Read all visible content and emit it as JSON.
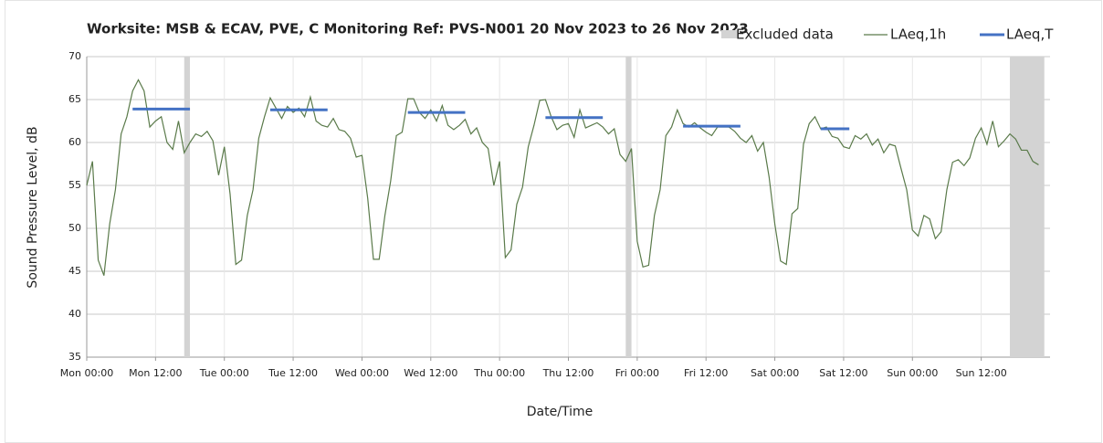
{
  "chart_data": {
    "type": "line",
    "title": "Worksite: MSB & ECAV, PVE, C   Monitoring Ref: PVS-N001     20 Nov 2023 to 26 Nov 2023",
    "x_label": "Date/Time",
    "y_label": "Sound Pressure Level, dB",
    "xlim": [
      0,
      168
    ],
    "ylim": [
      35,
      70
    ],
    "xticks": [
      {
        "value": 0,
        "label": "Mon 00:00"
      },
      {
        "value": 12,
        "label": "Mon 12:00"
      },
      {
        "value": 24,
        "label": "Tue 00:00"
      },
      {
        "value": 36,
        "label": "Tue 12:00"
      },
      {
        "value": 48,
        "label": "Wed 00:00"
      },
      {
        "value": 60,
        "label": "Wed 12:00"
      },
      {
        "value": 72,
        "label": "Thu 00:00"
      },
      {
        "value": 84,
        "label": "Thu 12:00"
      },
      {
        "value": 96,
        "label": "Fri 00:00"
      },
      {
        "value": 108,
        "label": "Fri 12:00"
      },
      {
        "value": 120,
        "label": "Sat 00:00"
      },
      {
        "value": 132,
        "label": "Sat 12:00"
      },
      {
        "value": 144,
        "label": "Sun 00:00"
      },
      {
        "value": 156,
        "label": "Sun 12:00"
      }
    ],
    "yticks": [
      35,
      40,
      45,
      50,
      55,
      60,
      65,
      70
    ],
    "grid": true,
    "excluded": {
      "name": "Excluded data",
      "color": "#d3d3d3",
      "periods": [
        [
          17,
          18
        ],
        [
          94,
          95
        ],
        [
          161,
          167
        ]
      ]
    },
    "series": [
      {
        "name": "LAeq,1h",
        "color": "#5a7a4a",
        "x": [
          0,
          1,
          2,
          3,
          4,
          5,
          6,
          7,
          8,
          9,
          10,
          11,
          12,
          13,
          14,
          15,
          16,
          17,
          18,
          19,
          20,
          21,
          22,
          23,
          24,
          25,
          26,
          27,
          28,
          29,
          30,
          31,
          32,
          33,
          34,
          35,
          36,
          37,
          38,
          39,
          40,
          41,
          42,
          43,
          44,
          45,
          46,
          47,
          48,
          49,
          50,
          51,
          52,
          53,
          54,
          55,
          56,
          57,
          58,
          59,
          60,
          61,
          62,
          63,
          64,
          65,
          66,
          67,
          68,
          69,
          70,
          71,
          72,
          73,
          74,
          75,
          76,
          77,
          78,
          79,
          80,
          81,
          82,
          83,
          84,
          85,
          86,
          87,
          88,
          89,
          90,
          91,
          92,
          93,
          94,
          95,
          96,
          97,
          98,
          99,
          100,
          101,
          102,
          103,
          104,
          105,
          106,
          107,
          108,
          109,
          110,
          111,
          112,
          113,
          114,
          115,
          116,
          117,
          118,
          119,
          120,
          121,
          122,
          123,
          124,
          125,
          126,
          127,
          128,
          129,
          130,
          131,
          132,
          133,
          134,
          135,
          136,
          137,
          138,
          139,
          140,
          141,
          142,
          143,
          144,
          145,
          146,
          147,
          148,
          149,
          150,
          151,
          152,
          153,
          154,
          155,
          156,
          157,
          158,
          159,
          160,
          161,
          162,
          163,
          164,
          165,
          166
        ],
        "values": [
          55,
          57.8,
          46.3,
          44.5,
          50.5,
          54.5,
          61,
          63,
          66,
          67.3,
          66,
          61.8,
          62.5,
          63,
          60,
          59.2,
          62.5,
          58.8,
          60,
          61,
          60.7,
          61.3,
          60.2,
          56.2,
          59.5,
          54,
          45.8,
          46.3,
          51.5,
          54.5,
          60.5,
          63,
          65.2,
          64,
          62.8,
          64.2,
          63.5,
          64,
          63,
          65.3,
          62.5,
          62,
          61.8,
          62.8,
          61.5,
          61.3,
          60.5,
          58.3,
          58.5,
          53.5,
          46.4,
          46.4,
          51.5,
          55.5,
          60.8,
          61.2,
          65.1,
          65.1,
          63.5,
          62.8,
          63.8,
          62.5,
          64.3,
          62,
          61.5,
          62,
          62.7,
          61,
          61.7,
          60,
          59.3,
          55,
          57.8,
          46.6,
          47.5,
          52.8,
          54.8,
          59.5,
          62,
          64.9,
          65,
          63,
          61.5,
          62,
          62.2,
          60.6,
          63.8,
          61.7,
          62,
          62.3,
          61.8,
          61,
          61.6,
          58.6,
          57.8,
          59.3,
          48.5,
          45.5,
          45.7,
          51.5,
          54.5,
          60.8,
          61.8,
          63.8,
          62.2,
          61.8,
          62.3,
          61.7,
          61.2,
          60.8,
          61.8,
          61.8,
          61.8,
          61.3,
          60.5,
          60,
          60.8,
          59,
          60,
          56,
          50.5,
          46.2,
          45.8,
          51.7,
          52.3,
          59.8,
          62.2,
          63,
          61.6,
          61.8,
          60.7,
          60.5,
          59.5,
          59.3,
          60.8,
          60.4,
          61,
          59.7,
          60.4,
          58.8,
          59.8,
          59.6,
          57,
          54.5,
          49.8,
          49.1,
          51.5,
          51.1,
          48.8,
          49.6,
          54.5,
          57.7,
          58,
          57.3,
          58.2,
          60.5,
          61.7,
          59.8,
          62.5,
          59.5,
          60.2,
          61,
          60.4,
          59.1,
          59.1,
          57.8,
          57.4
        ]
      },
      {
        "name": "LAeq,T",
        "color": "#4472c4",
        "periods": [
          [
            8,
            18
          ],
          [
            32,
            42
          ],
          [
            56,
            66
          ],
          [
            80,
            90
          ],
          [
            104,
            114
          ],
          [
            128,
            133
          ]
        ],
        "values": [
          63.9,
          63.8,
          63.5,
          62.9,
          61.9,
          61.6
        ]
      }
    ]
  }
}
